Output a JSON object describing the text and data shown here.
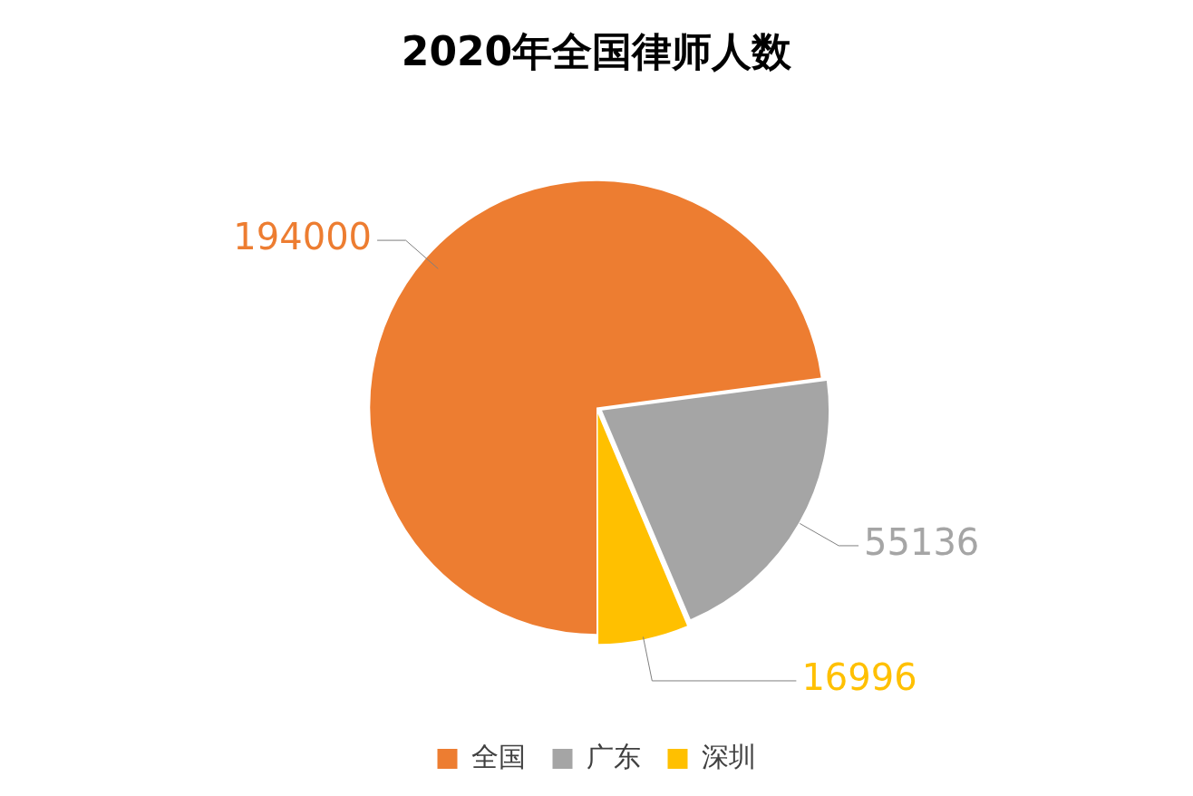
{
  "chart_data": {
    "type": "pie",
    "title": "2020年全国律师人数",
    "categories": [
      "全国",
      "广东",
      "深圳"
    ],
    "values": [
      194000,
      55136,
      16996
    ],
    "colors": [
      "#ed7d31",
      "#a5a5a5",
      "#ffc000"
    ],
    "data_labels": true,
    "legend": "bottom"
  }
}
